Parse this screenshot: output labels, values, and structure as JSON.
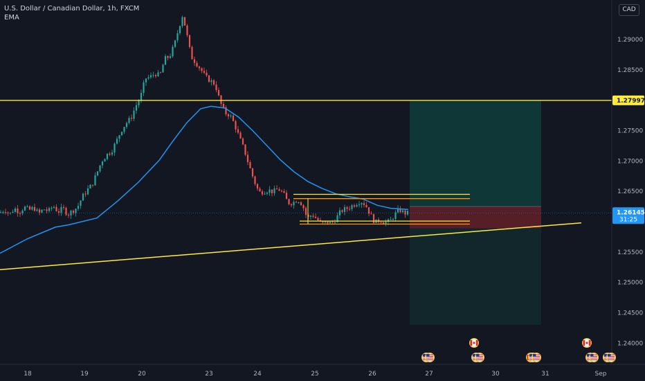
{
  "header": {
    "symbol_title": "U.S. Dollar / Canadian Dollar, 1h, FXCM",
    "indicator": "EMA",
    "currency": "CAD"
  },
  "colors": {
    "background": "#131722",
    "candle_up": "#26a69a",
    "candle_down": "#ef5350",
    "ema_line": "#2196f3",
    "level_line": "#ffeb3b",
    "target_zone": "#0f3b3a",
    "stop_zone": "#5a1f28",
    "price_tag": "#2196f3"
  },
  "icons": {
    "event_us": "us-flag-icon",
    "event_ca": "canada-flag-icon"
  },
  "chart_data": {
    "type": "candlestick",
    "title": "U.S. Dollar / Canadian Dollar, 1h, FXCM",
    "ylim": [
      1.2365,
      1.2965
    ],
    "y_ticks": [
      "1.29000",
      "1.28500",
      "1.27500",
      "1.27000",
      "1.26500",
      "1.25500",
      "1.25000",
      "1.24500",
      "1.24000"
    ],
    "x_ticks": [
      "18",
      "19",
      "20",
      "23",
      "24",
      "25",
      "26",
      "27",
      "30",
      "31",
      "Sep"
    ],
    "last_price": "1.26145",
    "countdown": "31:25",
    "horizontal_level": "1.27997",
    "price_path": [
      [
        0,
        1.2615
      ],
      [
        7,
        1.262
      ],
      [
        14,
        1.2612
      ],
      [
        21,
        1.2622
      ],
      [
        28,
        1.2616
      ],
      [
        35,
        1.2624
      ],
      [
        42,
        1.2619
      ],
      [
        49,
        1.2623
      ],
      [
        56,
        1.2613
      ],
      [
        63,
        1.2621
      ],
      [
        70,
        1.2617
      ],
      [
        77,
        1.2626
      ],
      [
        84,
        1.2616
      ],
      [
        91,
        1.2622
      ],
      [
        98,
        1.2612
      ],
      [
        105,
        1.2618
      ],
      [
        112,
        1.2624
      ],
      [
        119,
        1.2641
      ],
      [
        126,
        1.2652
      ],
      [
        133,
        1.2661
      ],
      [
        140,
        1.268
      ],
      [
        147,
        1.27
      ],
      [
        154,
        1.271
      ],
      [
        161,
        1.2716
      ],
      [
        168,
        1.2732
      ],
      [
        175,
        1.275
      ],
      [
        182,
        1.2762
      ],
      [
        189,
        1.277
      ],
      [
        196,
        1.279
      ],
      [
        203,
        1.2805
      ],
      [
        210,
        1.2836
      ],
      [
        217,
        1.2838
      ],
      [
        224,
        1.2844
      ],
      [
        231,
        1.284
      ],
      [
        238,
        1.2868
      ],
      [
        245,
        1.2872
      ],
      [
        252,
        1.2891
      ],
      [
        259,
        1.2922
      ],
      [
        264,
        1.2941
      ],
      [
        270,
        1.2908
      ],
      [
        276,
        1.2872
      ],
      [
        283,
        1.2862
      ],
      [
        290,
        1.2851
      ],
      [
        297,
        1.2838
      ],
      [
        304,
        1.2832
      ],
      [
        311,
        1.2826
      ],
      [
        318,
        1.2797
      ],
      [
        325,
        1.2779
      ],
      [
        332,
        1.2776
      ],
      [
        339,
        1.276
      ],
      [
        346,
        1.2738
      ],
      [
        353,
        1.2718
      ],
      [
        360,
        1.2692
      ],
      [
        367,
        1.2668
      ],
      [
        374,
        1.2648
      ],
      [
        381,
        1.265
      ],
      [
        388,
        1.2652
      ],
      [
        395,
        1.2649
      ],
      [
        402,
        1.2654
      ],
      [
        409,
        1.2647
      ],
      [
        416,
        1.2631
      ],
      [
        423,
        1.2631
      ],
      [
        430,
        1.2637
      ],
      [
        437,
        1.2628
      ],
      [
        444,
        1.2605
      ],
      [
        451,
        1.2612
      ],
      [
        458,
        1.2604
      ],
      [
        465,
        1.2596
      ],
      [
        472,
        1.26
      ],
      [
        479,
        1.2597
      ],
      [
        486,
        1.2606
      ],
      [
        493,
        1.2618
      ],
      [
        500,
        1.2621
      ],
      [
        507,
        1.2625
      ],
      [
        514,
        1.263
      ],
      [
        521,
        1.2634
      ],
      [
        528,
        1.2628
      ],
      [
        535,
        1.2612
      ],
      [
        542,
        1.2598
      ],
      [
        549,
        1.2603
      ],
      [
        556,
        1.2599
      ],
      [
        563,
        1.26
      ],
      [
        570,
        1.2611
      ],
      [
        577,
        1.262
      ],
      [
        584,
        1.2614
      ],
      [
        591,
        1.2614
      ]
    ],
    "ema_path": [
      [
        0,
        1.2548
      ],
      [
        40,
        1.2572
      ],
      [
        80,
        1.2591
      ],
      [
        100,
        1.2595
      ],
      [
        140,
        1.2606
      ],
      [
        170,
        1.2634
      ],
      [
        200,
        1.2665
      ],
      [
        230,
        1.2701
      ],
      [
        250,
        1.2733
      ],
      [
        270,
        1.2763
      ],
      [
        290,
        1.2786
      ],
      [
        305,
        1.279
      ],
      [
        325,
        1.2787
      ],
      [
        345,
        1.2772
      ],
      [
        365,
        1.275
      ],
      [
        385,
        1.2726
      ],
      [
        405,
        1.2702
      ],
      [
        425,
        1.2682
      ],
      [
        445,
        1.2666
      ],
      [
        465,
        1.2655
      ],
      [
        485,
        1.2646
      ],
      [
        505,
        1.2641
      ],
      [
        525,
        1.2637
      ],
      [
        545,
        1.2627
      ],
      [
        565,
        1.2622
      ],
      [
        590,
        1.262
      ]
    ],
    "trendline": [
      [
        0,
        1.2521
      ],
      [
        840,
        1.2598
      ]
    ],
    "channel_top_levels": [
      1.2645,
      1.2638
    ],
    "channel_bottom_levels": [
      1.2601,
      1.2596
    ],
    "long_position": {
      "entry": 1.2625,
      "stop": 1.2589,
      "target": 1.27997,
      "lower_shade": 1.243
    },
    "events": {
      "us": [
        [
          616,
          1
        ],
        [
          688,
          1
        ],
        [
          770,
          1
        ],
        [
          853,
          1
        ],
        [
          878,
          1
        ]
      ],
      "ca": [
        [
          685,
          0
        ],
        [
          767,
          1
        ],
        [
          848,
          0
        ]
      ]
    }
  }
}
